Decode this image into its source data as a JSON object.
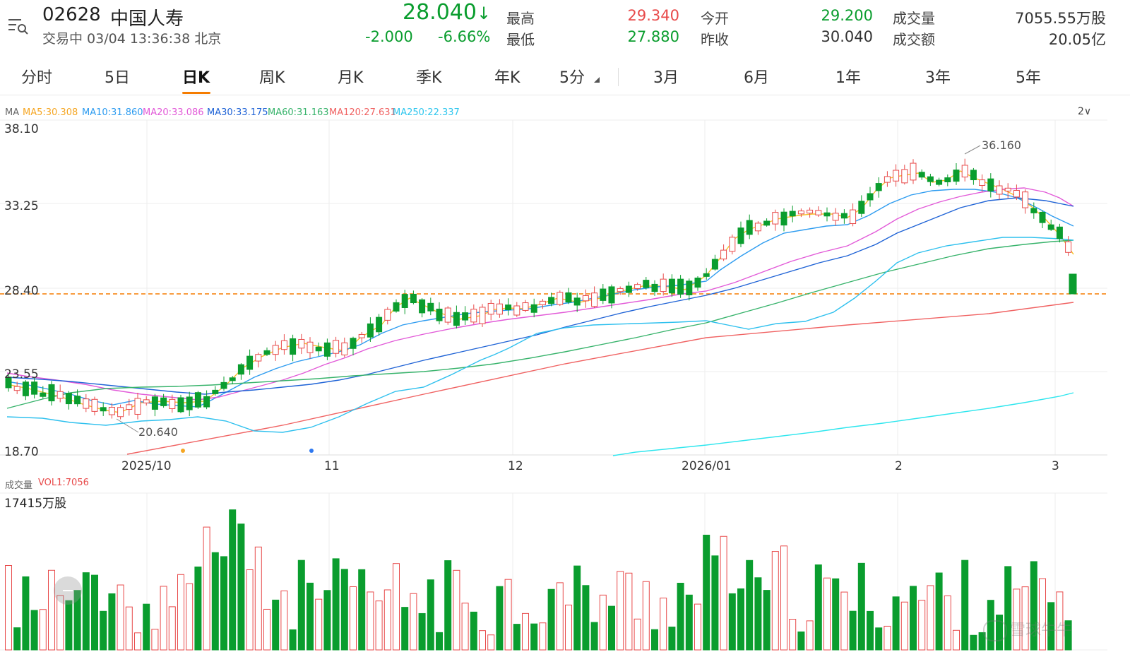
{
  "header": {
    "code": "02628",
    "name": "中国人寿",
    "status": "交易中 03/04 13:36:38 北京",
    "price": "28.040",
    "price_arrow": "↓",
    "change": "-2.000",
    "change_pct": "-6.66%",
    "stats": {
      "high_label": "最高",
      "high": "29.340",
      "low_label": "最低",
      "low": "27.880",
      "open_label": "今开",
      "open": "29.200",
      "prev_label": "昨收",
      "prev": "30.040",
      "vol_label": "成交量",
      "vol": "7055.55万股",
      "amt_label": "成交额",
      "amt": "20.05亿"
    }
  },
  "tabs": [
    "分时",
    "5日",
    "日K",
    "周K",
    "月K",
    "季K",
    "年K",
    "5分"
  ],
  "active_tab": "日K",
  "range_tabs": [
    "3月",
    "6月",
    "1年",
    "3年",
    "5年"
  ],
  "ma_legend": {
    "prefix": "MA",
    "items": [
      {
        "label": "MA5:30.308",
        "color": "#f5a623"
      },
      {
        "label": "MA10:31.860",
        "color": "#2e9cf0"
      },
      {
        "label": "MA20:33.086",
        "color": "#e25ad8"
      },
      {
        "label": "MA30:33.175",
        "color": "#1f63d6"
      },
      {
        "label": "MA60:31.163",
        "color": "#37b36b"
      },
      {
        "label": "MA120:27.631",
        "color": "#f06262"
      },
      {
        "label": "MA250:22.337",
        "color": "#2ee6ee"
      }
    ],
    "dropdown": "2∨"
  },
  "price_axis": [
    "38.10",
    "33.25",
    "28.40",
    "23.55",
    "18.70"
  ],
  "date_axis": [
    "2025/10",
    "11",
    "12",
    "2026/01",
    "2",
    "3"
  ],
  "annotations": {
    "high": "36.160",
    "low": "20.640"
  },
  "volume": {
    "title": "成交量",
    "vol_label": "VOL1:7056",
    "max_label": "17415万股"
  },
  "watermark": "雪球牛牛",
  "colors": {
    "up": "#e84a4a",
    "down": "#0a9d2e",
    "accent": "#f57c00"
  }
}
